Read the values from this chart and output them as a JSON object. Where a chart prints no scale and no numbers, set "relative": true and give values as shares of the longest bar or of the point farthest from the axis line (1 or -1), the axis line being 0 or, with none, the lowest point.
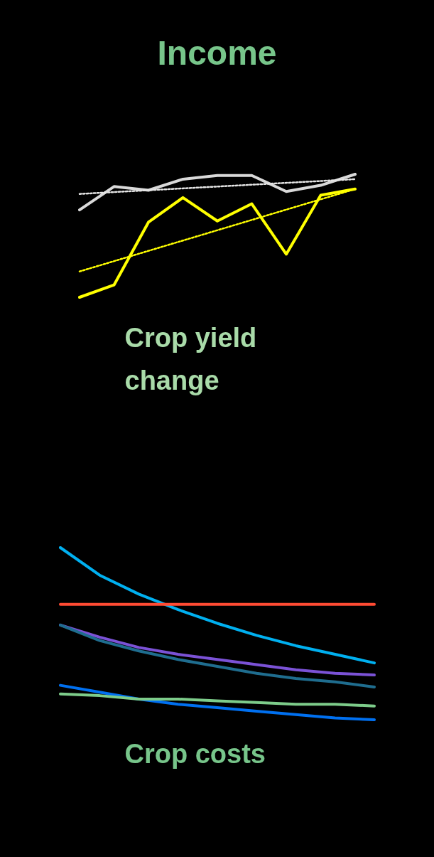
{
  "chart_data": [
    {
      "type": "line",
      "title": "Income",
      "xlabel": "Crop yield change",
      "relative": true,
      "categories": [
        null,
        null,
        null,
        null,
        null,
        null,
        null,
        null,
        null
      ],
      "marker": "none",
      "series": [
        {
          "color": "#d9d9d9",
          "values": [
            0.71,
            0.9,
            0.87,
            0.96,
            0.99,
            0.99,
            0.86,
            0.91,
            1
          ],
          "line_style": "solid"
        },
        {
          "color": "#ffff00",
          "values": [
            0,
            0.1,
            0.61,
            0.81,
            0.62,
            0.76,
            0.35,
            0.83,
            0.88
          ],
          "line_style": "solid"
        },
        {
          "color": "#e6e6e6",
          "values": [
            0.84,
            null,
            null,
            null,
            null,
            null,
            null,
            null,
            0.96
          ],
          "line_style": "dotted"
        },
        {
          "color": "#ffff00",
          "values": [
            0.21,
            null,
            null,
            null,
            null,
            null,
            null,
            null,
            0.88
          ],
          "line_style": "dotted"
        }
      ]
    },
    {
      "type": "line",
      "xlabel": "Crop costs",
      "relative": true,
      "categories": [
        null,
        null,
        null,
        null,
        null,
        null,
        null,
        null,
        null
      ],
      "marker": "none",
      "series": [
        {
          "color": "#00b0f0",
          "values": [
            1,
            0.84,
            0.73,
            0.64,
            0.56,
            0.49,
            0.43,
            0.38,
            0.33
          ]
        },
        {
          "color": "#ff4b33",
          "values": [
            0.67,
            0.67,
            0.67,
            0.67,
            0.67,
            0.67,
            0.67,
            0.67,
            0.67
          ]
        },
        {
          "color": "#7b52d6",
          "values": [
            0.55,
            0.48,
            0.42,
            0.38,
            0.35,
            0.32,
            0.29,
            0.27,
            0.26
          ]
        },
        {
          "color": "#1f6d8f",
          "values": [
            0.55,
            0.46,
            0.4,
            0.35,
            0.31,
            0.27,
            0.24,
            0.22,
            0.19
          ]
        },
        {
          "color": "#0070f0",
          "values": [
            0.2,
            0.16,
            0.12,
            0.09,
            0.07,
            0.05,
            0.03,
            0.01,
            0
          ]
        },
        {
          "color": "#7dcc8a",
          "values": [
            0.15,
            0.14,
            0.12,
            0.12,
            0.11,
            0.1,
            0.09,
            0.09,
            0.08
          ]
        }
      ]
    }
  ]
}
